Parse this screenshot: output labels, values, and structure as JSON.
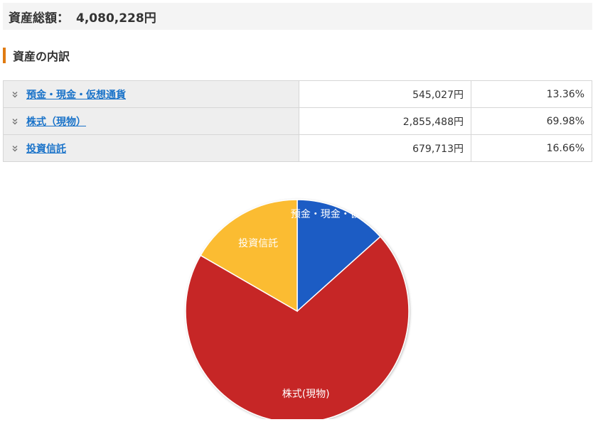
{
  "summary": {
    "label": "資産総額：",
    "value": "4,080,228円"
  },
  "section": {
    "title": "資産の内訳"
  },
  "breakdown": [
    {
      "name": "預金・現金・仮想通貨",
      "amount": "545,027円",
      "percent": "13.36%"
    },
    {
      "name": "株式（現物）",
      "amount": "2,855,488円",
      "percent": "69.98%"
    },
    {
      "name": "投資信託",
      "amount": "679,713円",
      "percent": "16.66%"
    }
  ],
  "chart_data": {
    "type": "pie",
    "categories": [
      "預金・現金・仮想通貨",
      "株式(現物)",
      "投資信託"
    ],
    "values": [
      13.36,
      69.98,
      16.66
    ],
    "colors": [
      "#1f5bc4",
      "#c62828",
      "#fbbc33"
    ],
    "start_angle": 0,
    "direction": "clockwise"
  },
  "icons": {
    "row_toggle": "chevron-double-down-icon"
  }
}
